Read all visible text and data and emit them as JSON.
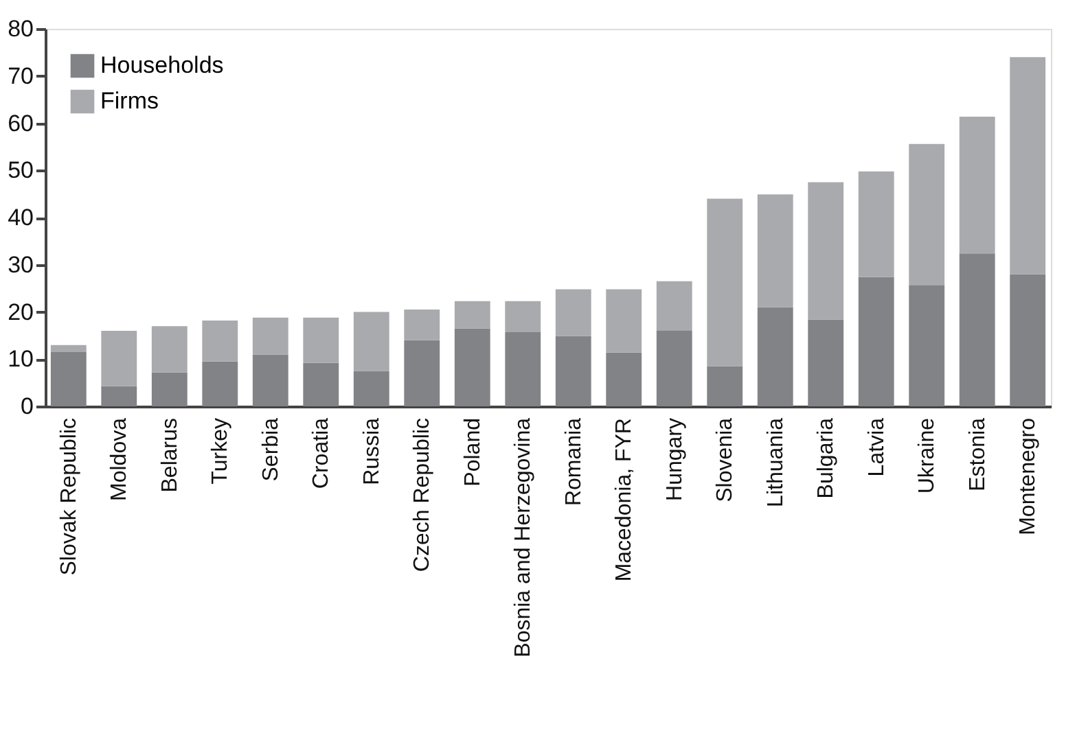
{
  "chart_data": {
    "type": "bar",
    "stacked": true,
    "categories": [
      "Slovak Republic",
      "Moldova",
      "Belarus",
      "Turkey",
      "Serbia",
      "Croatia",
      "Russia",
      "Czech Republic",
      "Poland",
      "Bosnia and Herzegovina",
      "Romania",
      "Macedonia, FYR",
      "Hungary",
      "Slovenia",
      "Lithuania",
      "Bulgaria",
      "Latvia",
      "Ukraine",
      "Estonia",
      "Montenegro"
    ],
    "series": [
      {
        "name": "Households",
        "color": "#828387",
        "values": [
          11.5,
          4.3,
          7.2,
          9.5,
          11,
          9.2,
          7.5,
          14,
          16.5,
          15.7,
          14.9,
          11.4,
          16.1,
          8.5,
          21,
          18.4,
          27.4,
          25.7,
          32.4,
          28
        ]
      },
      {
        "name": "Firms",
        "color": "#a9aaad",
        "values": [
          1.5,
          11.7,
          9.8,
          8.7,
          7.8,
          9.6,
          12.5,
          6.5,
          5.8,
          6.6,
          9.9,
          13.4,
          10.4,
          35.5,
          23.9,
          29.1,
          22.4,
          29.9,
          29,
          46
        ]
      }
    ],
    "ylim": [
      0,
      80
    ],
    "yticks": [
      0,
      10,
      20,
      30,
      40,
      50,
      60,
      70,
      80
    ],
    "grid": false,
    "legend": "top left"
  }
}
